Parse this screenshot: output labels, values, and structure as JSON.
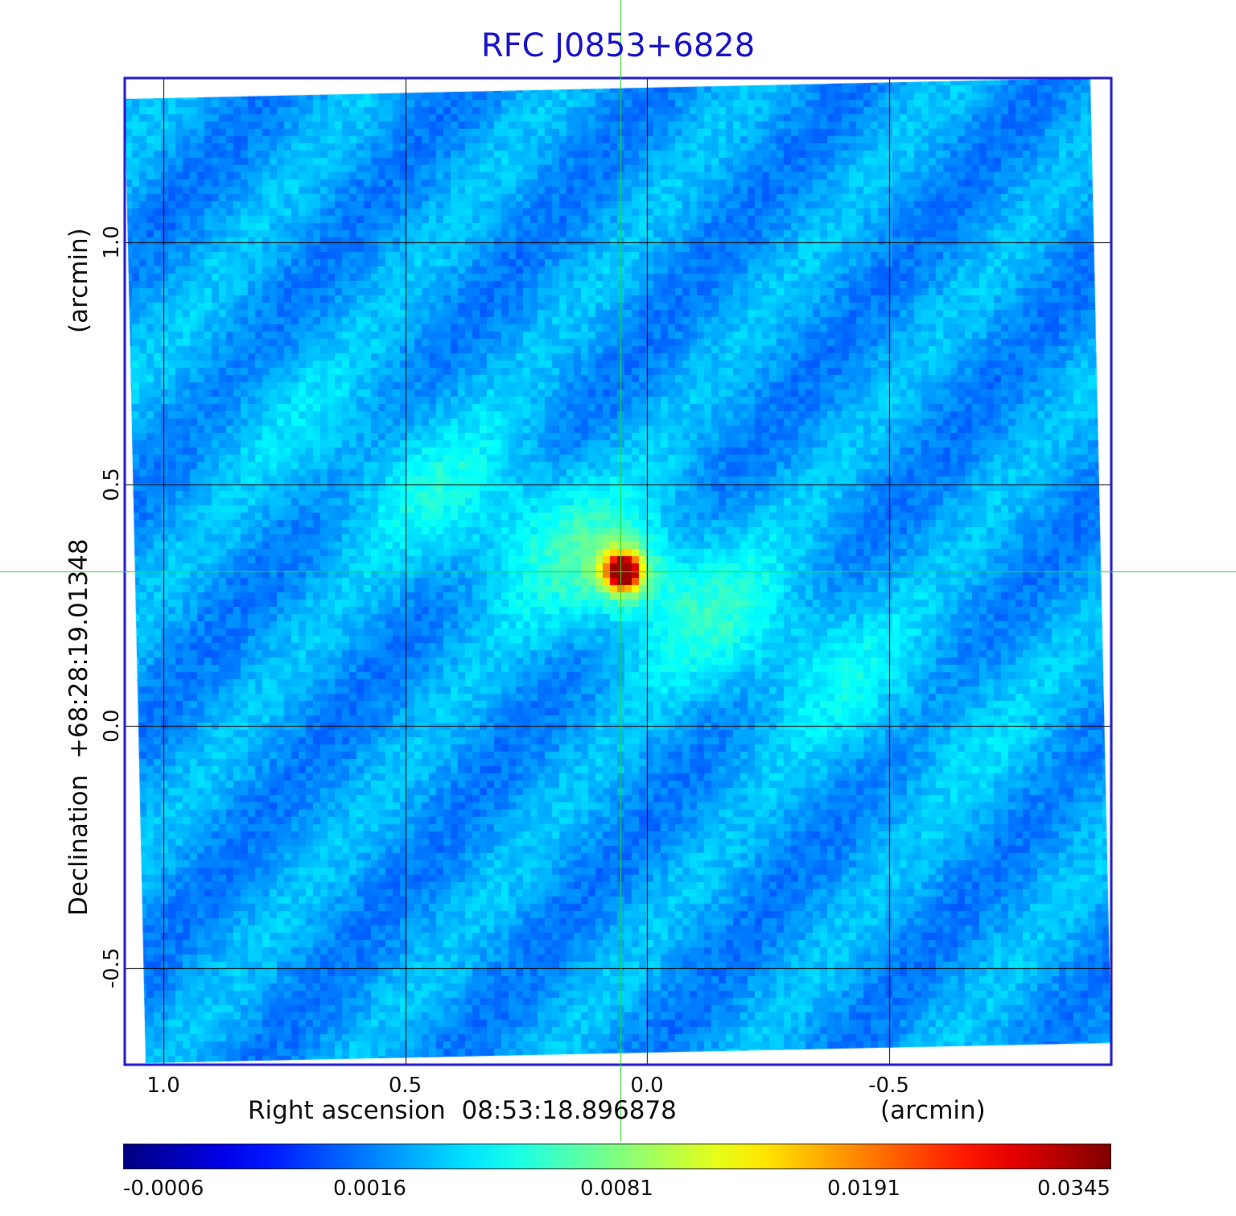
{
  "chart_data": {
    "type": "heatmap",
    "title": "RFC J0853+6828",
    "xlabel": "Right ascension  08:53:18.896878",
    "x_unit": "(arcmin)",
    "ylabel": "Declination  +68:28:19.01348",
    "y_unit": "(arcmin)",
    "x_ticks": [
      "1.0",
      "0.5",
      "0.0",
      "-0.5"
    ],
    "x_tick_values": [
      1.0,
      0.5,
      0.0,
      -0.5
    ],
    "y_ticks": [
      "1.0",
      "0.5",
      "0.0",
      "-0.5"
    ],
    "y_tick_values": [
      1.0,
      0.5,
      0.0,
      -0.5
    ],
    "xlim": [
      1.08,
      -0.96
    ],
    "ylim": [
      -0.7,
      1.34
    ],
    "grid": true,
    "crosshair": {
      "x": 0.055,
      "y": 0.32,
      "color": "#22dd22"
    },
    "source_peak": {
      "x": 0.05,
      "y": 0.32,
      "value": 0.0345
    },
    "colorbar": {
      "colormap": "jet",
      "ticks": [
        "-0.0006",
        "0.0016",
        "0.0081",
        "0.0191",
        "0.0345"
      ],
      "tick_values": [
        -0.0006,
        0.0016,
        0.0081,
        0.0191,
        0.0345
      ]
    }
  }
}
